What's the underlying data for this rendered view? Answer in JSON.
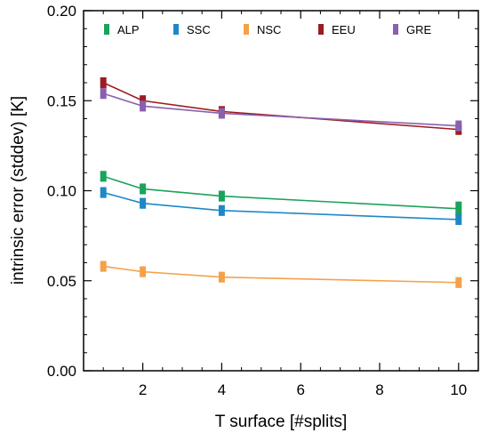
{
  "chart_data": {
    "type": "line",
    "title": "",
    "xlabel": "T surface [#splits]",
    "ylabel": "intrinsic error (stddev) [K]",
    "xlim": [
      0.5,
      10.5
    ],
    "ylim": [
      0.0,
      0.2
    ],
    "xticks": [
      2,
      4,
      6,
      8,
      10
    ],
    "yticks": [
      0.0,
      0.05,
      0.1,
      0.15,
      0.2
    ],
    "ytick_labels": [
      "0.00",
      "0.05",
      "0.10",
      "0.15",
      "0.20"
    ],
    "grid": false,
    "legend_placement": "top",
    "x": [
      1,
      2,
      4,
      10
    ],
    "series": [
      {
        "name": "ALP",
        "color": "#1aa35a",
        "values": [
          0.108,
          0.101,
          0.097,
          0.09
        ],
        "err": [
          0.003,
          0.003,
          0.003,
          0.004
        ]
      },
      {
        "name": "SSC",
        "color": "#1e88c7",
        "values": [
          0.099,
          0.093,
          0.089,
          0.084
        ],
        "err": [
          0.003,
          0.003,
          0.003,
          0.003
        ]
      },
      {
        "name": "NSC",
        "color": "#f5a14a",
        "values": [
          0.058,
          0.055,
          0.052,
          0.049
        ],
        "err": [
          0.003,
          0.003,
          0.003,
          0.003
        ]
      },
      {
        "name": "EEU",
        "color": "#9b1c22",
        "values": [
          0.16,
          0.15,
          0.144,
          0.134
        ],
        "err": [
          0.003,
          0.003,
          0.003,
          0.003
        ]
      },
      {
        "name": "GRE",
        "color": "#8a5fb0",
        "values": [
          0.154,
          0.147,
          0.143,
          0.136
        ],
        "err": [
          0.003,
          0.003,
          0.003,
          0.003
        ]
      }
    ]
  }
}
